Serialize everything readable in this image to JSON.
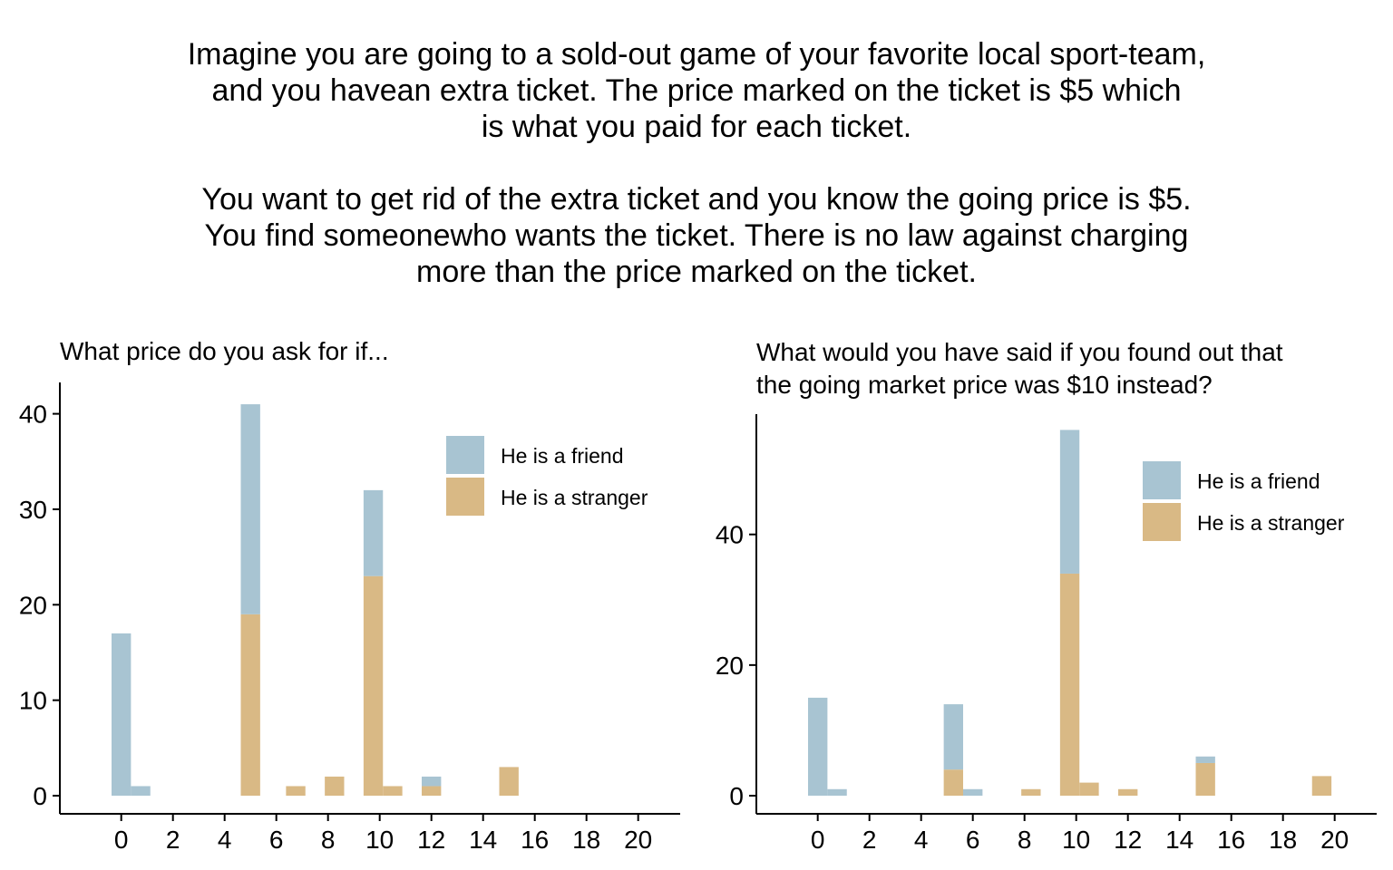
{
  "intro": {
    "line1": "Imagine you are going to a sold-out game of your favorite local sport-team,",
    "line2": "and you havean extra ticket. The price marked on the ticket is $5 which",
    "line3": "is what you paid for each ticket.",
    "line4": "You want to get rid of the extra ticket and you know the going price is $5.",
    "line5": "You find someonewho wants the ticket. There is no law against charging",
    "line6": "more than the price marked on the ticket."
  },
  "colors": {
    "friend": "#a8c4d2",
    "stranger": "#d9b985"
  },
  "chart_data": [
    {
      "type": "bar",
      "stacked": true,
      "title": [
        "What price do you ask for if..."
      ],
      "xlabel": "",
      "ylabel": "",
      "xlim": [
        -2,
        22
      ],
      "ylim": [
        0,
        43
      ],
      "xticks": [
        0,
        2,
        4,
        6,
        8,
        10,
        12,
        14,
        16,
        18,
        20
      ],
      "yticks": [
        0,
        10,
        20,
        30,
        40
      ],
      "bin_width": 0.75,
      "legend": {
        "position": "top-right"
      },
      "series": [
        {
          "name": "He is a stranger",
          "color": "#d9b985",
          "bins": [
            [
              5,
              19
            ],
            [
              6.75,
              1
            ],
            [
              8.25,
              2
            ],
            [
              9.75,
              23
            ],
            [
              10.5,
              1
            ],
            [
              12,
              1
            ],
            [
              15,
              3
            ]
          ]
        },
        {
          "name": "He is a friend",
          "color": "#a8c4d2",
          "bins": [
            [
              0,
              17
            ],
            [
              0.75,
              1
            ],
            [
              5,
              22
            ],
            [
              9.75,
              9
            ],
            [
              12,
              1
            ]
          ]
        }
      ]
    },
    {
      "type": "bar",
      "stacked": true,
      "title": [
        "What would you have said if you found out that",
        "the going market price was $10 instead?"
      ],
      "xlabel": "",
      "ylabel": "",
      "xlim": [
        -2,
        22
      ],
      "ylim": [
        0,
        58
      ],
      "xticks": [
        0,
        2,
        4,
        6,
        8,
        10,
        12,
        14,
        16,
        18,
        20
      ],
      "yticks": [
        0,
        20,
        40
      ],
      "bin_width": 0.75,
      "legend": {
        "position": "top-right"
      },
      "series": [
        {
          "name": "He is a stranger",
          "color": "#d9b985",
          "bins": [
            [
              5.25,
              4
            ],
            [
              8.25,
              1
            ],
            [
              9.75,
              34
            ],
            [
              10.5,
              2
            ],
            [
              12,
              1
            ],
            [
              15,
              5
            ],
            [
              19.5,
              3
            ]
          ]
        },
        {
          "name": "He is a friend",
          "color": "#a8c4d2",
          "bins": [
            [
              0,
              15
            ],
            [
              0.75,
              1
            ],
            [
              5.25,
              10
            ],
            [
              6,
              1
            ],
            [
              9.75,
              22
            ],
            [
              15,
              1
            ]
          ]
        }
      ]
    }
  ]
}
